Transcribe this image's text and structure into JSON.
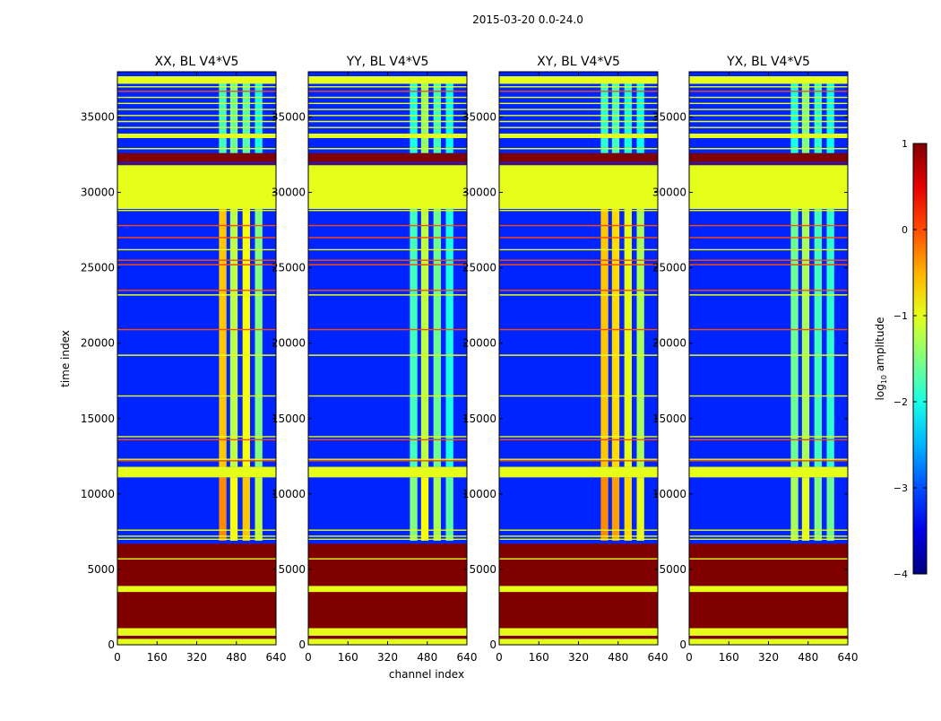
{
  "figure": {
    "suptitle": "2015-03-20 0.0-24.0"
  },
  "chart_data": {
    "type": "heatmap",
    "xlabel": "channel index",
    "ylabel": "time index",
    "xlim": [
      0,
      640
    ],
    "ylim": [
      0,
      38000
    ],
    "xticks": [
      0,
      160,
      320,
      480,
      640
    ],
    "xtick_labels": [
      "0",
      "160",
      "320",
      "480",
      "640"
    ],
    "yticks": [
      0,
      5000,
      10000,
      15000,
      20000,
      25000,
      30000,
      35000
    ],
    "ytick_labels": [
      "0",
      "5000",
      "10000",
      "15000",
      "20000",
      "25000",
      "30000",
      "35000"
    ],
    "panels": [
      {
        "title": "XX, BL V4*V5",
        "polarization": "XX",
        "band_levels": [
          -0.6,
          -1.2,
          -0.9,
          -1.5
        ],
        "upper_levels": [
          -1.8,
          -1.6,
          -1.7,
          -2.0
        ]
      },
      {
        "title": "YY, BL V4*V5",
        "polarization": "YY",
        "band_levels": [
          -1.8,
          -1.2,
          -1.6,
          -2.0
        ],
        "upper_levels": [
          -2.0,
          -1.4,
          -1.8,
          -2.1
        ]
      },
      {
        "title": "XY, BL V4*V5",
        "polarization": "XY",
        "band_levels": [
          -0.6,
          -0.7,
          -1.0,
          -1.3
        ],
        "upper_levels": [
          -1.9,
          -1.8,
          -2.0,
          -2.1
        ]
      },
      {
        "title": "YX, BL V4*V5",
        "polarization": "YX",
        "band_levels": [
          -1.6,
          -1.3,
          -1.8,
          -1.9
        ],
        "upper_levels": [
          -2.0,
          -1.5,
          -1.9,
          -2.1
        ]
      }
    ],
    "band_channels": [
      [
        410,
        440
      ],
      [
        455,
        485
      ],
      [
        505,
        535
      ],
      [
        555,
        585
      ]
    ],
    "background_level": -3.2,
    "flagged_blocks": [
      {
        "t0": 0,
        "t1": 400,
        "level": -1
      },
      {
        "t0": 400,
        "t1": 600,
        "level": 1
      },
      {
        "t0": 600,
        "t1": 1100,
        "level": -1
      },
      {
        "t0": 1100,
        "t1": 6700,
        "level": 1
      },
      {
        "t0": 3500,
        "t1": 3900,
        "level": -1
      },
      {
        "t0": 11100,
        "t1": 11800,
        "level": -1
      },
      {
        "t0": 28900,
        "t1": 31800,
        "level": -1
      },
      {
        "t0": 32000,
        "t1": 32600,
        "level": 1
      },
      {
        "t0": 33600,
        "t1": 33900,
        "level": -1
      },
      {
        "t0": 37200,
        "t1": 37700,
        "level": -1
      }
    ],
    "flag_lines": [
      {
        "t": 5700,
        "level": -1
      },
      {
        "t": 7000,
        "level": -1
      },
      {
        "t": 7200,
        "level": -1
      },
      {
        "t": 7600,
        "level": -1
      },
      {
        "t": 12200,
        "level": 0
      },
      {
        "t": 12300,
        "level": -1
      },
      {
        "t": 13600,
        "level": 0
      },
      {
        "t": 13800,
        "level": -1
      },
      {
        "t": 16500,
        "level": -1
      },
      {
        "t": 19200,
        "level": -1
      },
      {
        "t": 20900,
        "level": 0
      },
      {
        "t": 23200,
        "level": -1
      },
      {
        "t": 23500,
        "level": 0
      },
      {
        "t": 25200,
        "level": 0
      },
      {
        "t": 25500,
        "level": 0
      },
      {
        "t": 26200,
        "level": -1
      },
      {
        "t": 27000,
        "level": 0
      },
      {
        "t": 27800,
        "level": 0
      },
      {
        "t": 28800,
        "level": -1
      },
      {
        "t": 31900,
        "level": 1
      },
      {
        "t": 32900,
        "level": -1
      },
      {
        "t": 34300,
        "level": -1
      },
      {
        "t": 34700,
        "level": -1
      },
      {
        "t": 35100,
        "level": -1
      },
      {
        "t": 35500,
        "level": -1
      },
      {
        "t": 35900,
        "level": -1
      },
      {
        "t": 36300,
        "level": -1
      },
      {
        "t": 36700,
        "level": 0
      },
      {
        "t": 37000,
        "level": -1
      }
    ],
    "colorbar": {
      "label_main": "log",
      "label_sub": "10",
      "label_rest": " amplitude",
      "min": -4,
      "max": 1,
      "ticks": [
        1,
        0,
        -1,
        -2,
        -3,
        -4
      ],
      "tick_labels": [
        "1",
        "0",
        "−1",
        "−2",
        "−3",
        "−4"
      ],
      "colormap": "jet"
    }
  }
}
